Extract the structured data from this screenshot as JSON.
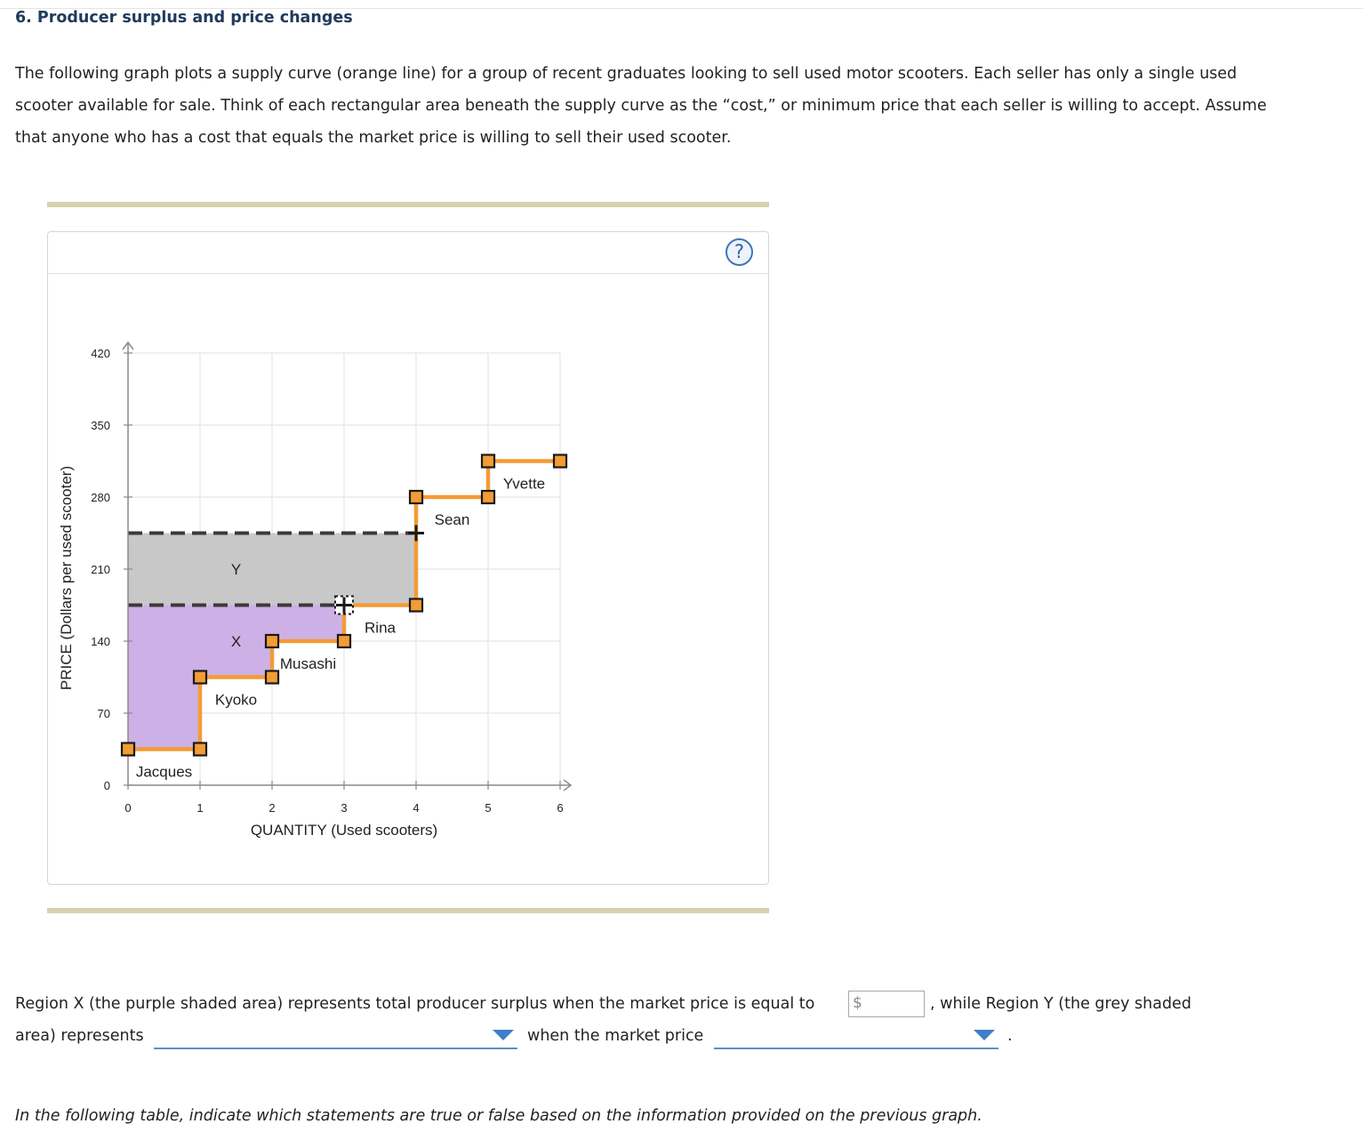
{
  "title": "6. Producer surplus and price changes",
  "intro": "The following graph plots a supply curve (orange line) for a group of recent graduates looking to sell used motor scooters. Each seller has only a single used scooter available for sale. Think of each rectangular area beneath the supply curve as the “cost,” or minimum price that each seller is willing to accept. Assume that anyone who has a cost that equals the market price is willing to sell their used scooter.",
  "help_label": "?",
  "chart_data": {
    "type": "step",
    "xlabel": "QUANTITY (Used scooters)",
    "ylabel": "PRICE (Dollars per used scooter)",
    "xlim": [
      0,
      6
    ],
    "ylim": [
      0,
      420
    ],
    "x_ticks": [
      "0",
      "1",
      "2",
      "3",
      "4",
      "5",
      "6"
    ],
    "y_ticks": [
      "0",
      "70",
      "140",
      "210",
      "280",
      "350",
      "420"
    ],
    "supply_curve_color": "#f39c35",
    "sellers": [
      {
        "name": "Jacques",
        "cost": 35,
        "x_start": 0,
        "x_end": 1
      },
      {
        "name": "Kyoko",
        "cost": 105,
        "x_start": 1,
        "x_end": 2
      },
      {
        "name": "Musashi",
        "cost": 140,
        "x_start": 2,
        "x_end": 3
      },
      {
        "name": "Rina",
        "cost": 175,
        "x_start": 3,
        "x_end": 4
      },
      {
        "name": "Sean",
        "cost": 280,
        "x_start": 4,
        "x_end": 5
      },
      {
        "name": "Yvette",
        "cost": 315,
        "x_start": 5,
        "x_end": 6
      }
    ],
    "price_lines": [
      175,
      245
    ],
    "regions": [
      {
        "label": "X",
        "color": "#cdb0e5",
        "fill": "purple"
      },
      {
        "label": "Y",
        "color": "#c8c8c8",
        "fill": "grey"
      }
    ]
  },
  "question": {
    "line1_text": "Region X (the purple shaded area) represents total producer surplus when the market price is equal to",
    "currency_symbol": "$",
    "price_value": "",
    "after_input_text": ", while Region Y (the grey shaded",
    "line2_text": "area) represents",
    "dropdown1_value": "",
    "mid_text": "when the market price",
    "dropdown2_value": "",
    "end_text": "."
  },
  "footer_note": "In the following table, indicate which statements are true or false based on the information provided on the previous graph."
}
